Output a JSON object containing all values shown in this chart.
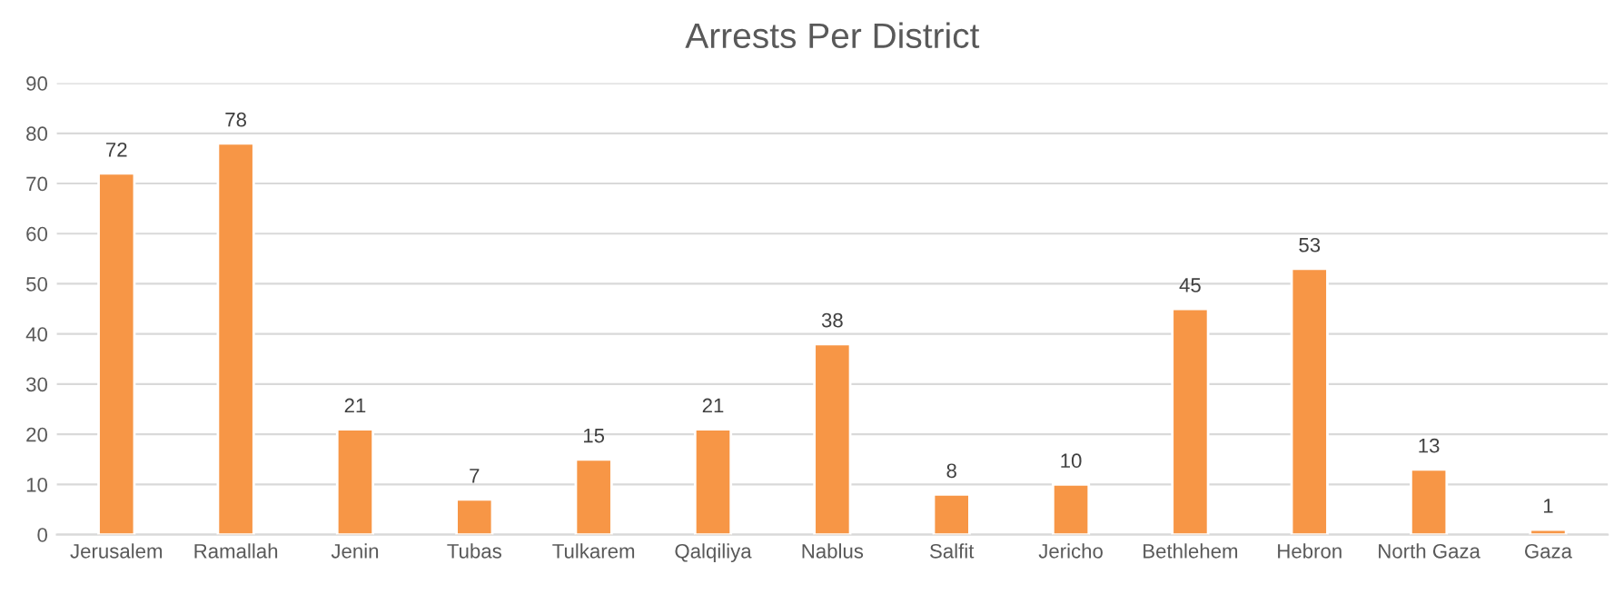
{
  "chart_data": {
    "type": "bar",
    "title": "Arrests Per District",
    "categories": [
      "Jerusalem",
      "Ramallah",
      "Jenin",
      "Tubas",
      "Tulkarem",
      "Qalqiliya",
      "Nablus",
      "Salfit",
      "Jericho",
      "Bethlehem",
      "Hebron",
      "North Gaza",
      "Gaza"
    ],
    "values": [
      72,
      78,
      21,
      7,
      15,
      21,
      38,
      8,
      10,
      45,
      53,
      13,
      1
    ],
    "color": "#f79646",
    "ylim": [
      0,
      90
    ],
    "yticks": [
      0,
      10,
      20,
      30,
      40,
      50,
      60,
      70,
      80,
      90
    ],
    "grid": "y",
    "data_labels": true
  }
}
